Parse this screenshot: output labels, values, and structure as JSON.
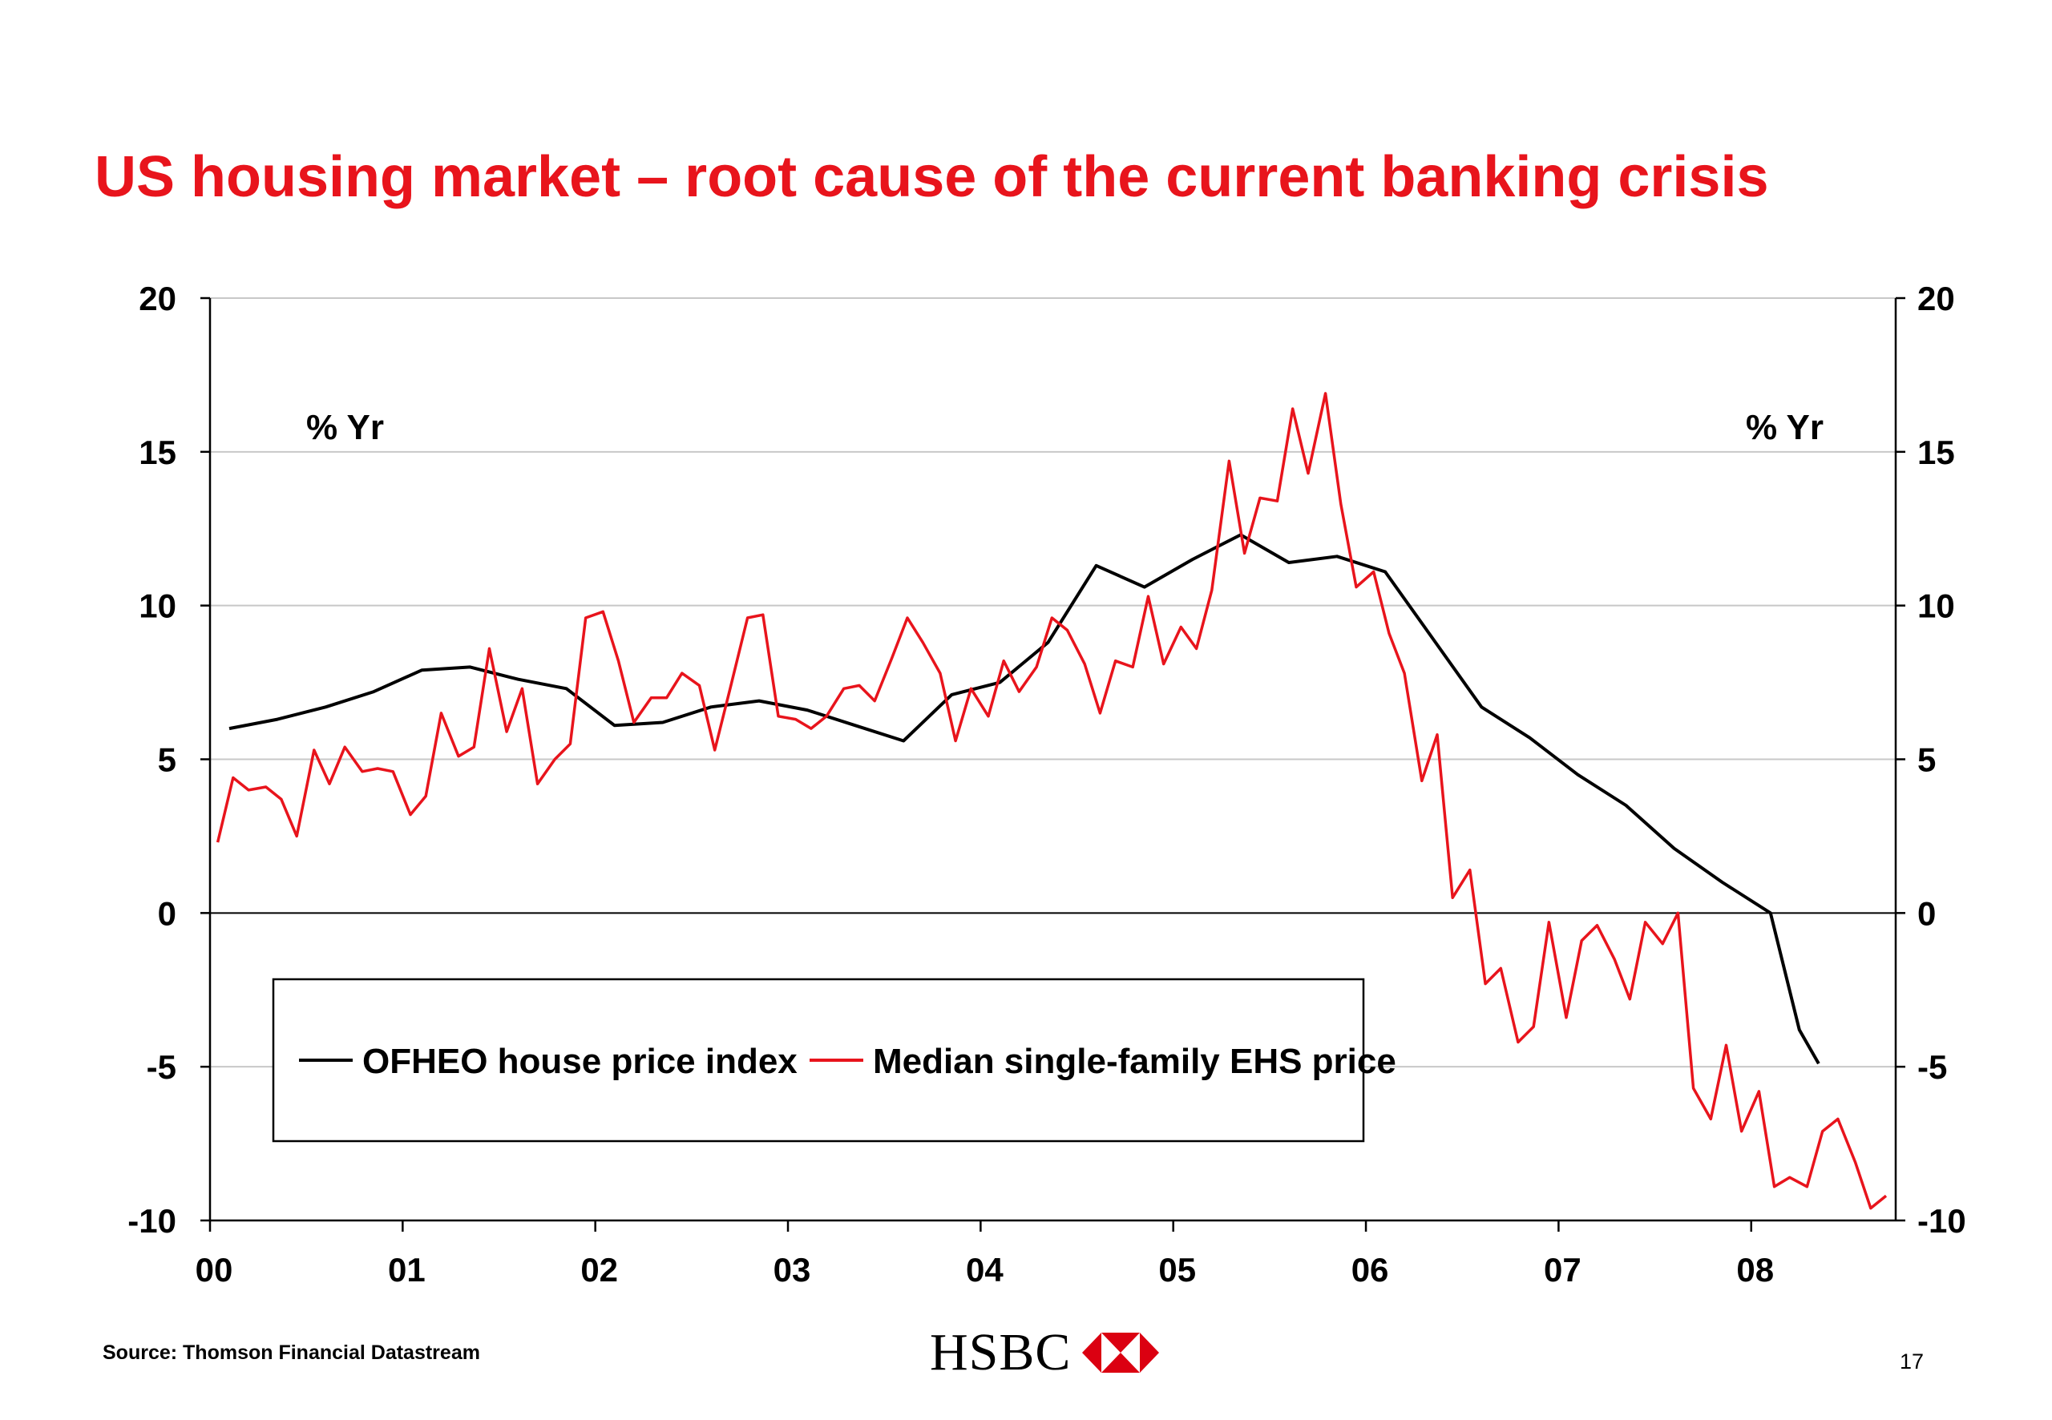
{
  "slide": {
    "title": "US housing market – root cause of the current banking crisis",
    "source": "Source: Thomson Financial Datastream",
    "page_number": "17",
    "logo_text": "HSBC",
    "colors": {
      "title": "#e8141c",
      "logo_red": "#db0011"
    }
  },
  "chart_data": {
    "type": "line",
    "title": "",
    "y_unit_left": "% Yr",
    "y_unit_right": "% Yr",
    "xlabel": "",
    "ylabel": "",
    "x_range": [
      2000.0,
      2008.75
    ],
    "ylim": [
      -10,
      20
    ],
    "y_ticks": [
      -10,
      -5,
      0,
      5,
      10,
      15,
      20
    ],
    "y_tick_labels": [
      "-10",
      "-5",
      "0",
      "5",
      "10",
      "15",
      "20"
    ],
    "x_ticks": [
      2000,
      2001,
      2002,
      2003,
      2004,
      2005,
      2006,
      2007,
      2008
    ],
    "x_tick_labels": [
      "00",
      "01",
      "02",
      "03",
      "04",
      "05",
      "06",
      "07",
      "08"
    ],
    "grid": true,
    "legend_position": "bottom-left",
    "series": [
      {
        "name": "OFHEO house price index",
        "color": "#000000",
        "x": [
          2000.1,
          2000.35,
          2000.6,
          2000.85,
          2001.1,
          2001.35,
          2001.6,
          2001.85,
          2002.1,
          2002.35,
          2002.6,
          2002.85,
          2003.1,
          2003.35,
          2003.6,
          2003.85,
          2004.1,
          2004.35,
          2004.6,
          2004.85,
          2005.1,
          2005.35,
          2005.6,
          2005.85,
          2006.1,
          2006.35,
          2006.6,
          2006.85,
          2007.1,
          2007.35,
          2007.6,
          2007.85,
          2008.1,
          2008.25,
          2008.35
        ],
        "y": [
          6.0,
          6.3,
          6.7,
          7.2,
          7.9,
          8.0,
          7.6,
          7.3,
          6.1,
          6.2,
          6.7,
          6.9,
          6.6,
          6.1,
          5.6,
          7.1,
          7.5,
          8.8,
          11.3,
          10.6,
          11.5,
          12.3,
          11.4,
          11.6,
          11.1,
          8.9,
          6.7,
          5.7,
          4.5,
          3.5,
          2.1,
          1.0,
          0.0,
          -3.8,
          -4.9
        ]
      },
      {
        "name": "Median single-family EHS price",
        "color": "#e8141c",
        "x": [
          2000.04,
          2000.12,
          2000.2,
          2000.29,
          2000.37,
          2000.45,
          2000.54,
          2000.62,
          2000.7,
          2000.79,
          2000.87,
          2000.95,
          2001.04,
          2001.12,
          2001.2,
          2001.29,
          2001.37,
          2001.45,
          2001.54,
          2001.62,
          2001.7,
          2001.79,
          2001.87,
          2001.95,
          2002.04,
          2002.12,
          2002.2,
          2002.29,
          2002.37,
          2002.45,
          2002.54,
          2002.62,
          2002.7,
          2002.79,
          2002.87,
          2002.95,
          2003.04,
          2003.12,
          2003.2,
          2003.29,
          2003.37,
          2003.45,
          2003.54,
          2003.62,
          2003.7,
          2003.79,
          2003.87,
          2003.95,
          2004.04,
          2004.12,
          2004.2,
          2004.29,
          2004.37,
          2004.45,
          2004.54,
          2004.62,
          2004.7,
          2004.79,
          2004.87,
          2004.95,
          2005.04,
          2005.12,
          2005.2,
          2005.29,
          2005.37,
          2005.45,
          2005.54,
          2005.62,
          2005.7,
          2005.79,
          2005.87,
          2005.95,
          2006.04,
          2006.12,
          2006.2,
          2006.29,
          2006.37,
          2006.45,
          2006.54,
          2006.62,
          2006.7,
          2006.79,
          2006.87,
          2006.95,
          2007.04,
          2007.12,
          2007.2,
          2007.29,
          2007.37,
          2007.45,
          2007.54,
          2007.62,
          2007.7,
          2007.79,
          2007.87,
          2007.95,
          2008.04,
          2008.12,
          2008.2,
          2008.29,
          2008.37,
          2008.45,
          2008.54,
          2008.62,
          2008.7
        ],
        "y": [
          2.3,
          4.4,
          4.0,
          4.1,
          3.7,
          2.5,
          5.3,
          4.2,
          5.4,
          4.6,
          4.7,
          4.6,
          3.2,
          3.8,
          6.5,
          5.1,
          5.4,
          8.6,
          5.9,
          7.3,
          4.2,
          5.0,
          5.5,
          9.6,
          9.8,
          8.2,
          6.2,
          7.0,
          7.0,
          7.8,
          7.4,
          5.3,
          7.3,
          9.6,
          9.7,
          6.4,
          6.3,
          6.0,
          6.4,
          7.3,
          7.4,
          6.9,
          8.3,
          9.6,
          8.8,
          7.8,
          5.6,
          7.3,
          6.4,
          8.2,
          7.2,
          8.0,
          9.6,
          9.2,
          8.1,
          6.5,
          8.2,
          8.0,
          10.3,
          8.1,
          9.3,
          8.6,
          10.5,
          14.7,
          11.7,
          13.5,
          13.4,
          16.4,
          14.3,
          16.9,
          13.3,
          10.6,
          11.1,
          9.1,
          7.8,
          4.3,
          5.8,
          0.5,
          1.4,
          -2.3,
          -1.8,
          -4.2,
          -3.7,
          -0.3,
          -3.4,
          -0.9,
          -0.4,
          -1.5,
          -2.8,
          -0.3,
          -1.0,
          0.0,
          -5.7,
          -6.7,
          -4.3,
          -7.1,
          -5.8,
          -8.9,
          -8.6,
          -8.9,
          -7.1,
          -6.7,
          -8.1,
          -9.6,
          -9.2
        ]
      }
    ]
  }
}
